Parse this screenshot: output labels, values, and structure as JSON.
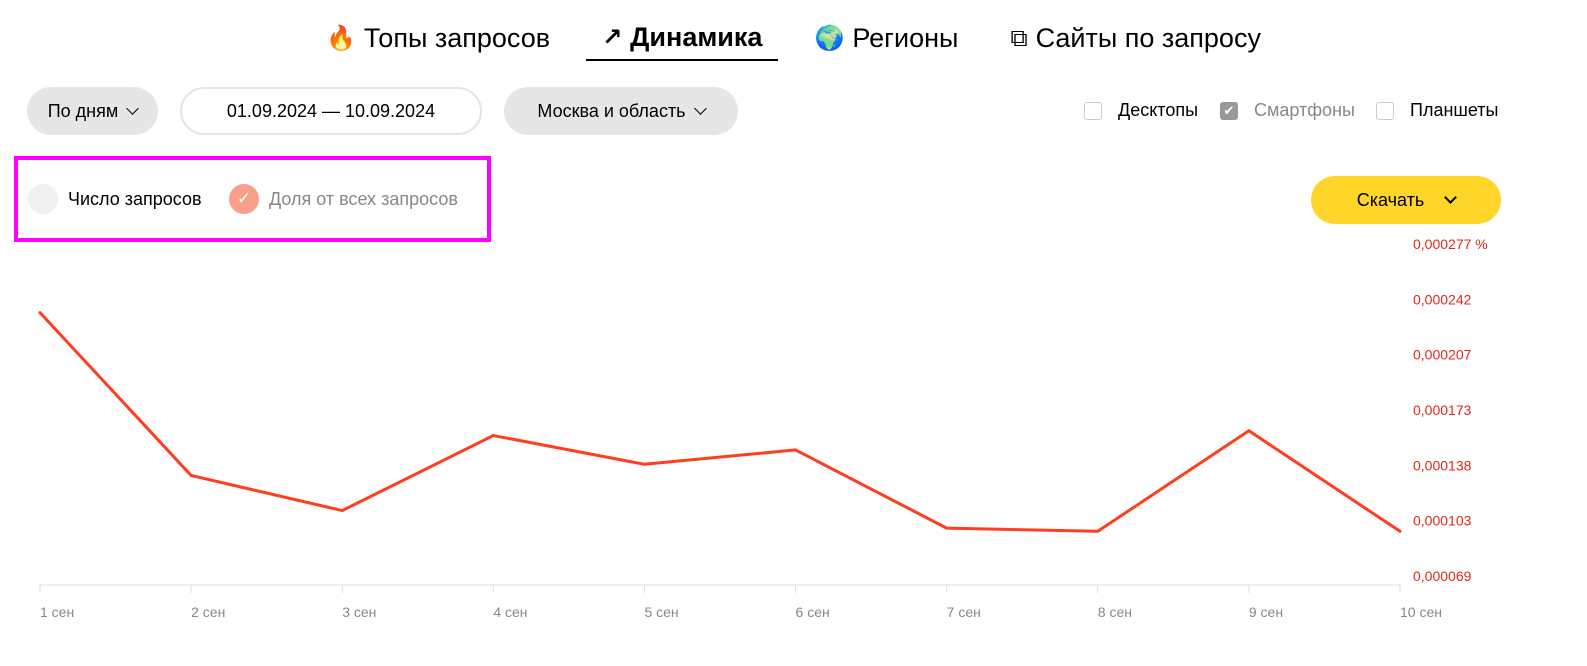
{
  "tabs": [
    {
      "label": "Топы запросов",
      "icon": "fire-icon",
      "active": false
    },
    {
      "label": "Динамика",
      "icon": "trend-up-icon",
      "active": true
    },
    {
      "label": "Регионы",
      "icon": "globe-icon",
      "active": false
    },
    {
      "label": "Сайты по запросу",
      "icon": "external-link-icon",
      "active": false
    }
  ],
  "filters": {
    "period": "По дням",
    "date_range": "01.09.2024 — 10.09.2024",
    "region": "Москва и область"
  },
  "devices": [
    {
      "label": "Десктопы",
      "checked": false
    },
    {
      "label": "Смартфоны",
      "checked": true
    },
    {
      "label": "Планшеты",
      "checked": false
    }
  ],
  "legend": [
    {
      "label": "Число запросов",
      "selected": false
    },
    {
      "label": "Доля от всех запросов",
      "selected": true
    }
  ],
  "download_label": "Скачать",
  "colors": {
    "line": "#ff3d1f",
    "axis_labels": "#e0281a",
    "accent": "#ffd52a",
    "highlight": "#ff00ff",
    "selected_dot": "#f9a08c"
  },
  "chart_data": {
    "type": "line",
    "categories": [
      "1 сен",
      "2 сен",
      "3 сен",
      "4 сен",
      "5 сен",
      "6 сен",
      "7 сен",
      "8 сен",
      "9 сен",
      "10 сен"
    ],
    "series": [
      {
        "values": [
          0.000234,
          0.000132,
          0.00011,
          0.000157,
          0.000139,
          0.000148,
          9.9e-05,
          9.7e-05,
          0.00016,
          9.7e-05
        ]
      }
    ],
    "y_ticks": [
      "0,000069",
      "0,000103",
      "0,000138",
      "0,000173",
      "0,000207",
      "0,000242",
      "0,000277 %"
    ],
    "ylim": [
      6.9e-05,
      0.000277
    ],
    "y_axis_position": "right",
    "grid": false
  }
}
